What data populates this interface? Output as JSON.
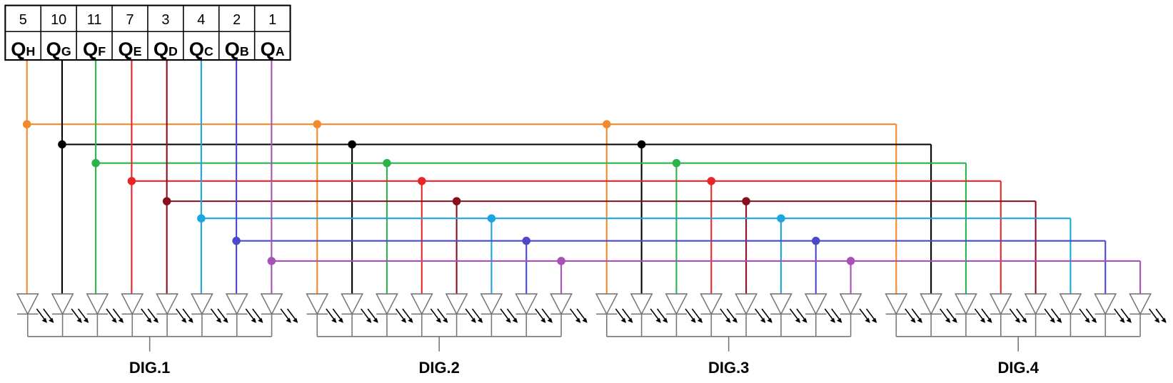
{
  "pin_table": {
    "pins": [
      "5",
      "10",
      "11",
      "7",
      "3",
      "4",
      "2",
      "1"
    ],
    "outputs": [
      {
        "letter": "Q",
        "sub": "H"
      },
      {
        "letter": "Q",
        "sub": "G"
      },
      {
        "letter": "Q",
        "sub": "F"
      },
      {
        "letter": "Q",
        "sub": "E"
      },
      {
        "letter": "Q",
        "sub": "D"
      },
      {
        "letter": "Q",
        "sub": "C"
      },
      {
        "letter": "Q",
        "sub": "B"
      },
      {
        "letter": "Q",
        "sub": "A"
      }
    ]
  },
  "digits": [
    "DIG.1",
    "DIG.2",
    "DIG.3",
    "DIG.4"
  ]
}
